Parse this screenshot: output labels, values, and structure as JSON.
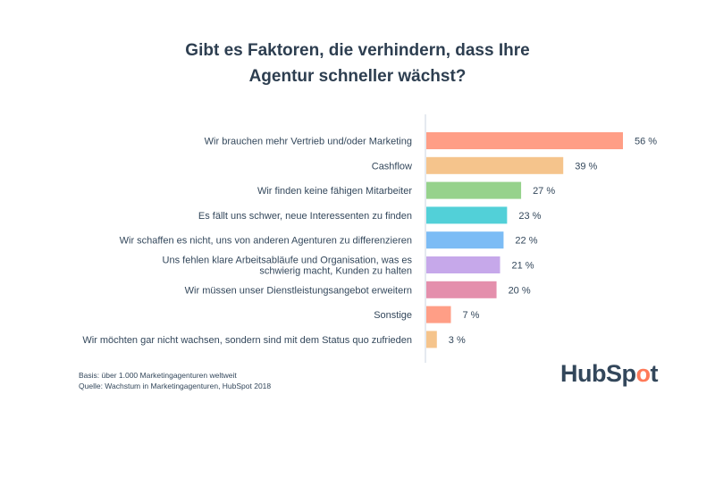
{
  "chart_data": {
    "type": "bar",
    "orientation": "horizontal",
    "title": "Gibt es Faktoren, die verhindern, dass Ihre Agentur schneller wächst?",
    "title_lines": [
      "Gibt es Faktoren, die verhindern, dass Ihre",
      "Agentur schneller wächst?"
    ],
    "categories": [
      [
        "Wir brauchen mehr Vertrieb und/oder Marketing"
      ],
      [
        "Cashflow"
      ],
      [
        "Wir finden keine fähigen Mitarbeiter"
      ],
      [
        "Es fällt uns schwer, neue Interessenten zu finden"
      ],
      [
        "Wir schaffen es nicht, uns von anderen Agenturen zu differenzieren"
      ],
      [
        "Uns fehlen klare Arbeitsabläufe und Organisation, was es",
        "schwierig macht, Kunden zu halten"
      ],
      [
        "Wir müssen unser Dienstleistungsangebot erweitern"
      ],
      [
        "Sonstige"
      ],
      [
        "Wir möchten gar nicht wachsen, sondern sind mit dem Status quo zufrieden"
      ]
    ],
    "values": [
      56,
      39,
      27,
      23,
      22,
      21,
      20,
      7,
      3
    ],
    "value_labels": [
      "56 %",
      "39 %",
      "27 %",
      "23 %",
      "22 %",
      "21 %",
      "20 %",
      "7 %",
      "3 %"
    ],
    "colors": [
      "#ff9e86",
      "#f5c48c",
      "#96d28c",
      "#52d0d8",
      "#7cbcf5",
      "#c6a8ea",
      "#e48fac",
      "#ff9e86",
      "#f5c48c"
    ],
    "xlim": [
      0,
      56
    ],
    "grid": false,
    "legend": "none"
  },
  "footnote": {
    "basis": "Basis: über 1.000 Marketingagenturen weltweit",
    "source": "Quelle: Wachstum in Marketingagenturen, HubSpot 2018"
  },
  "logo": {
    "part1": "HubSp",
    "part2": "o",
    "part3": "t"
  }
}
